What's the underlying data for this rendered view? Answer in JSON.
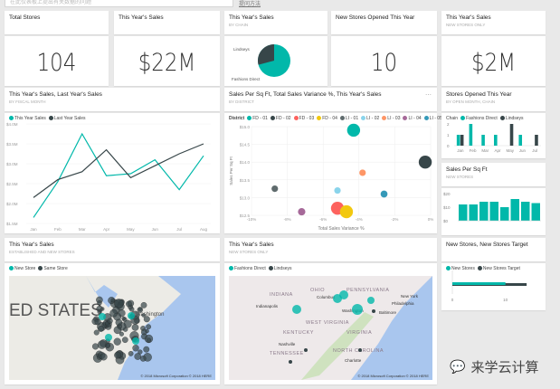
{
  "search": {
    "placeholder": "在此仪表板上提出有关数据的问题",
    "link": "提问方法"
  },
  "tiles": {
    "total_stores": {
      "title": "Total Stores",
      "value": "104"
    },
    "sales": {
      "title": "This Year's Sales",
      "value": "$22M"
    },
    "sales_chain": {
      "title": "This Year's Sales",
      "subtitle": "BY CHAIN",
      "labels": [
        "Lindseys",
        "Fashions Direct"
      ],
      "shares": [
        0.3,
        0.7
      ]
    },
    "new_stores": {
      "title": "New Stores Opened This Year",
      "value": "10"
    },
    "sales_new": {
      "title": "This Year's Sales",
      "subtitle": "NEW STORES ONLY",
      "value": "$2M"
    },
    "map1": {
      "title": "This Year's Sales",
      "subtitle": "ESTABLISHED AND NEW STORES",
      "legend": [
        "New Store",
        "Same Store"
      ],
      "label": "ED STATES",
      "city": "Washington",
      "copyright": "© 2018 Microsoft Corporation   © 2018 HERE"
    },
    "map2": {
      "title": "This Year's Sales",
      "subtitle": "NEW STORES ONLY",
      "legend": [
        "Fashions Direct",
        "Lindseys"
      ],
      "places": [
        "OHIO",
        "PENNSYLVANIA",
        "INDIANA",
        "Columbus",
        "Indianapolis",
        "New York",
        "Philadelphia",
        "Washington",
        "Baltimore",
        "WEST VIRGINIA",
        "KENTUCKY",
        "VIRGINIA",
        "Nashville",
        "TENNESSEE",
        "NORTH CAROLINA",
        "Charlotte"
      ],
      "copyright": "© 2018 Microsoft Corporation   © 2018 HERE"
    }
  },
  "colors": {
    "teal": "#01b8aa",
    "dark": "#374649",
    "red": "#fd625e",
    "yellow": "#f2c80f",
    "gray": "#5f6b6d",
    "lightblue": "#8ad4eb",
    "orange": "#fe9666",
    "purple": "#a66999",
    "blue": "#3599b8"
  },
  "chart_data": [
    {
      "type": "line",
      "title": "This Year's Sales, Last Year's Sales",
      "subtitle": "BY FISCAL MONTH",
      "categories": [
        "Jan",
        "Feb",
        "Mar",
        "Apr",
        "May",
        "Jun",
        "Jul",
        "Aug"
      ],
      "yticks": [
        "$1.5M",
        "$2.0M",
        "$2.5M",
        "$3.0M",
        "$3.5M",
        "$4.0M"
      ],
      "ylim": [
        1.5,
        4.0
      ],
      "series": [
        {
          "name": "This Year Sales",
          "color": "#01b8aa",
          "values": [
            1.65,
            2.55,
            3.75,
            2.7,
            2.75,
            3.1,
            2.35,
            3.2
          ]
        },
        {
          "name": "Last Year Sales",
          "color": "#374649",
          "values": [
            2.15,
            2.6,
            2.8,
            3.35,
            2.65,
            2.95,
            3.25,
            3.5
          ]
        }
      ]
    },
    {
      "type": "scatter",
      "title": "Sales Per Sq Ft, Total Sales Variance %, This Year's Sales",
      "subtitle": "BY DISTRICT",
      "legend_title": "District",
      "xlabel": "Total Sales Variance %",
      "ylabel": "Sales Per Sq Ft",
      "xlim": [
        -10,
        0
      ],
      "ylim": [
        12.5,
        15
      ],
      "xticks": [
        "-10%",
        "-8%",
        "-6%",
        "-4%",
        "-2%",
        "0%"
      ],
      "yticks": [
        "$12.5",
        "$13.0",
        "$13.5",
        "$14.0",
        "$14.5",
        "$15.0"
      ],
      "points": [
        {
          "name": "FD - 01",
          "x": -4.3,
          "y": 14.9,
          "size": 3,
          "color": "#01b8aa"
        },
        {
          "name": "FD - 02",
          "x": -0.3,
          "y": 14.0,
          "size": 3,
          "color": "#374649"
        },
        {
          "name": "FD - 03",
          "x": -5.2,
          "y": 12.7,
          "size": 3,
          "color": "#fd625e"
        },
        {
          "name": "FD - 04",
          "x": -4.7,
          "y": 12.6,
          "size": 3,
          "color": "#f2c80f"
        },
        {
          "name": "LI - 01",
          "x": -8.7,
          "y": 13.25,
          "size": 1.5,
          "color": "#5f6b6d"
        },
        {
          "name": "LI - 02",
          "x": -5.2,
          "y": 13.2,
          "size": 1.5,
          "color": "#8ad4eb"
        },
        {
          "name": "LI - 03",
          "x": -3.8,
          "y": 13.7,
          "size": 1.5,
          "color": "#fe9666"
        },
        {
          "name": "LI - 04",
          "x": -7.2,
          "y": 12.6,
          "size": 1.7,
          "color": "#a66999"
        },
        {
          "name": "LI - 05",
          "x": -2.6,
          "y": 13.1,
          "size": 1.6,
          "color": "#3599b8"
        }
      ]
    },
    {
      "type": "bar",
      "title": "Stores Opened This Year",
      "subtitle": "BY OPEN MONTH, CHAIN",
      "legend_title": "Chain",
      "categories": [
        "Jan",
        "Feb",
        "Mar",
        "Apr",
        "May",
        "Jun",
        "Jul"
      ],
      "yticks": [
        "0",
        "1",
        "2"
      ],
      "ylim": [
        0,
        2
      ],
      "series": [
        {
          "name": "Fashions Direct",
          "color": "#01b8aa",
          "values": [
            1,
            2,
            1,
            1,
            0,
            1,
            0
          ]
        },
        {
          "name": "Lindseys",
          "color": "#374649",
          "values": [
            1,
            0,
            0,
            0,
            2,
            0,
            1
          ]
        }
      ]
    },
    {
      "type": "bar",
      "title": "Sales Per Sq Ft",
      "subtitle": "NEW STORES",
      "yticks": [
        "$0",
        "$10",
        "$20"
      ],
      "ylim": [
        0,
        20
      ],
      "values": [
        12,
        12,
        14,
        14,
        10,
        16,
        14,
        13
      ]
    },
    {
      "type": "bar",
      "title": "New Stores, New Stores Target",
      "orientation": "horizontal",
      "series": [
        {
          "name": "New Stores",
          "color": "#01b8aa",
          "value": 10
        },
        {
          "name": "New Stores Target",
          "color": "#374649",
          "value": 14
        }
      ],
      "xticks": [
        "0",
        "10"
      ],
      "xlim": [
        0,
        15
      ]
    }
  ]
}
